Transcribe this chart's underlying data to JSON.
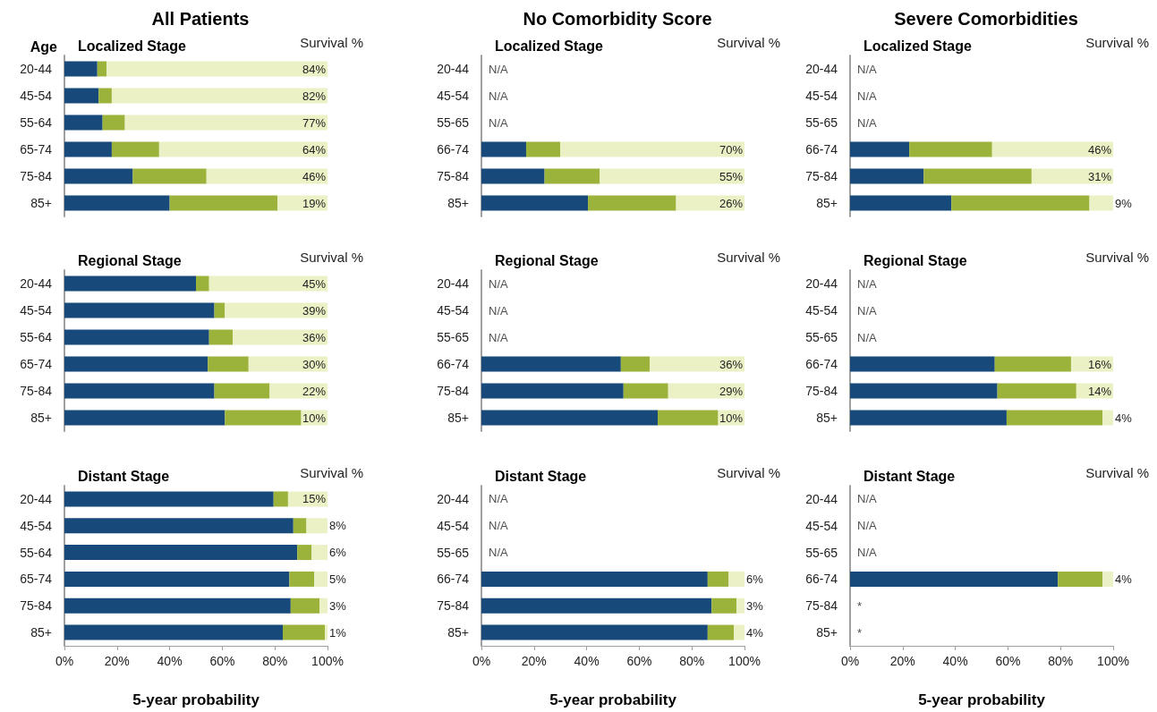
{
  "chart_data": [
    {
      "type": "bar",
      "orientation": "horizontal",
      "stacked": true,
      "title": "All Patients",
      "subtitle": "Localized Stage",
      "ylabel": "Age",
      "categories": [
        "20-44",
        "45-54",
        "55-64",
        "65-74",
        "75-84",
        "85+"
      ],
      "xlim": [
        0,
        100
      ],
      "tick_labels": "y",
      "annotations": [
        "Survival %"
      ],
      "series": [
        {
          "color": "#17497a",
          "values": [
            12.5,
            13,
            14.5,
            18,
            26,
            40
          ]
        },
        {
          "color": "#9bb33b",
          "values": [
            3.5,
            5,
            8.5,
            18,
            28,
            41
          ]
        },
        {
          "color": "#ebf1c5",
          "values": [
            84,
            82,
            77,
            64,
            46,
            19
          ],
          "value_labels": [
            "84%",
            "82%",
            "77%",
            "64%",
            "46%",
            "19%"
          ]
        }
      ]
    },
    {
      "type": "bar",
      "orientation": "horizontal",
      "stacked": true,
      "title": "No Comorbidity Score",
      "subtitle": "Localized Stage",
      "categories": [
        "20-44",
        "45-54",
        "55-65",
        "66-74",
        "75-84",
        "85+"
      ],
      "xlim": [
        0,
        100
      ],
      "tick_labels": "y",
      "annotations": [
        "Survival %"
      ],
      "series": [
        {
          "color": "#17497a",
          "values": [
            null,
            null,
            null,
            17,
            24,
            40.5
          ],
          "value_labels": [
            "N/A",
            "N/A",
            "N/A",
            null,
            null,
            null
          ]
        },
        {
          "color": "#9bb33b",
          "values": [
            null,
            null,
            null,
            13,
            21,
            33.5
          ]
        },
        {
          "color": "#ebf1c5",
          "values": [
            null,
            null,
            null,
            70,
            55,
            26
          ],
          "value_labels": [
            null,
            null,
            null,
            "70%",
            "55%",
            "26%"
          ]
        }
      ]
    },
    {
      "type": "bar",
      "orientation": "horizontal",
      "stacked": true,
      "title": "Severe Comorbidities",
      "subtitle": "Localized Stage",
      "categories": [
        "20-44",
        "45-54",
        "55-65",
        "66-74",
        "75-84",
        "85+"
      ],
      "xlim": [
        0,
        100
      ],
      "tick_labels": "y",
      "annotations": [
        "Survival %"
      ],
      "series": [
        {
          "color": "#17497a",
          "values": [
            null,
            null,
            null,
            22.5,
            28,
            38.5
          ],
          "value_labels": [
            "N/A",
            "N/A",
            "N/A",
            null,
            null,
            null
          ]
        },
        {
          "color": "#9bb33b",
          "values": [
            null,
            null,
            null,
            31.5,
            41,
            52.5
          ]
        },
        {
          "color": "#ebf1c5",
          "values": [
            null,
            null,
            null,
            46,
            31,
            9
          ],
          "value_labels": [
            null,
            null,
            null,
            "46%",
            "31%",
            "9%"
          ]
        }
      ]
    },
    {
      "type": "bar",
      "orientation": "horizontal",
      "stacked": true,
      "subtitle": "Regional Stage",
      "categories": [
        "20-44",
        "45-54",
        "55-64",
        "65-74",
        "75-84",
        "85+"
      ],
      "xlim": [
        0,
        100
      ],
      "tick_labels": "y",
      "annotations": [
        "Survival %"
      ],
      "series": [
        {
          "color": "#17497a",
          "values": [
            50,
            57,
            55,
            54.5,
            57,
            61
          ]
        },
        {
          "color": "#9bb33b",
          "values": [
            5,
            4,
            9,
            15.5,
            21,
            29
          ]
        },
        {
          "color": "#ebf1c5",
          "values": [
            45,
            39,
            36,
            30,
            22,
            10
          ],
          "value_labels": [
            "45%",
            "39%",
            "36%",
            "30%",
            "22%",
            "10%"
          ]
        }
      ]
    },
    {
      "type": "bar",
      "orientation": "horizontal",
      "stacked": true,
      "subtitle": "Regional Stage",
      "categories": [
        "20-44",
        "45-54",
        "55-65",
        "66-74",
        "75-84",
        "85+"
      ],
      "xlim": [
        0,
        100
      ],
      "tick_labels": "y",
      "annotations": [
        "Survival %"
      ],
      "series": [
        {
          "color": "#17497a",
          "values": [
            null,
            null,
            null,
            53,
            54,
            67
          ],
          "value_labels": [
            "N/A",
            "N/A",
            "N/A",
            null,
            null,
            null
          ]
        },
        {
          "color": "#9bb33b",
          "values": [
            null,
            null,
            null,
            11,
            17,
            23
          ]
        },
        {
          "color": "#ebf1c5",
          "values": [
            null,
            null,
            null,
            36,
            29,
            10
          ],
          "value_labels": [
            null,
            null,
            null,
            "36%",
            "29%",
            "10%"
          ]
        }
      ]
    },
    {
      "type": "bar",
      "orientation": "horizontal",
      "stacked": true,
      "subtitle": "Regional Stage",
      "categories": [
        "20-44",
        "45-54",
        "55-65",
        "66-74",
        "75-84",
        "85+"
      ],
      "xlim": [
        0,
        100
      ],
      "tick_labels": "y",
      "annotations": [
        "Survival %"
      ],
      "series": [
        {
          "color": "#17497a",
          "values": [
            null,
            null,
            null,
            55,
            56,
            59.5
          ],
          "value_labels": [
            "N/A",
            "N/A",
            "N/A",
            null,
            null,
            null
          ]
        },
        {
          "color": "#9bb33b",
          "values": [
            null,
            null,
            null,
            29,
            30,
            36.5
          ]
        },
        {
          "color": "#ebf1c5",
          "values": [
            null,
            null,
            null,
            16,
            14,
            4
          ],
          "value_labels": [
            null,
            null,
            null,
            "16%",
            "14%",
            "4%"
          ]
        }
      ]
    },
    {
      "type": "bar",
      "orientation": "horizontal",
      "stacked": true,
      "subtitle": "Distant Stage",
      "xlabel": "5-year probability",
      "categories": [
        "20-44",
        "45-54",
        "55-64",
        "65-74",
        "75-84",
        "85+"
      ],
      "xlim": [
        0,
        100
      ],
      "xticks": [
        {
          "value": 0,
          "label": "0%"
        },
        {
          "value": 20,
          "label": "20%"
        },
        {
          "value": 40,
          "label": "40%"
        },
        {
          "value": 60,
          "label": "60%"
        },
        {
          "value": 80,
          "label": "80%"
        },
        {
          "value": 100,
          "label": "100%"
        }
      ],
      "annotations": [
        "Survival %"
      ],
      "series": [
        {
          "color": "#17497a",
          "values": [
            79.5,
            87,
            88.5,
            85.5,
            86,
            83
          ]
        },
        {
          "color": "#9bb33b",
          "values": [
            5.5,
            5,
            5.5,
            9.5,
            11,
            16
          ]
        },
        {
          "color": "#ebf1c5",
          "values": [
            15,
            8,
            6,
            5,
            3,
            1
          ],
          "value_labels": [
            "15%",
            "8%",
            "6%",
            "5%",
            "3%",
            "1%"
          ]
        }
      ]
    },
    {
      "type": "bar",
      "orientation": "horizontal",
      "stacked": true,
      "subtitle": "Distant Stage",
      "xlabel": "5-year probability",
      "categories": [
        "20-44",
        "45-54",
        "55-65",
        "66-74",
        "75-84",
        "85+"
      ],
      "xlim": [
        0,
        100
      ],
      "xticks": [
        {
          "value": 0,
          "label": "0%"
        },
        {
          "value": 20,
          "label": "20%"
        },
        {
          "value": 40,
          "label": "40%"
        },
        {
          "value": 60,
          "label": "60%"
        },
        {
          "value": 80,
          "label": "80%"
        },
        {
          "value": 100,
          "label": "100%"
        }
      ],
      "annotations": [
        "Survival %"
      ],
      "series": [
        {
          "color": "#17497a",
          "values": [
            null,
            null,
            null,
            86,
            87.5,
            86
          ],
          "value_labels": [
            "N/A",
            "N/A",
            "N/A",
            null,
            null,
            null
          ]
        },
        {
          "color": "#9bb33b",
          "values": [
            null,
            null,
            null,
            8,
            9.5,
            10
          ]
        },
        {
          "color": "#ebf1c5",
          "values": [
            null,
            null,
            null,
            6,
            3,
            4
          ],
          "value_labels": [
            null,
            null,
            null,
            "6%",
            "3%",
            "4%"
          ]
        }
      ]
    },
    {
      "type": "bar",
      "orientation": "horizontal",
      "stacked": true,
      "subtitle": "Distant Stage",
      "xlabel": "5-year probability",
      "categories": [
        "20-44",
        "45-54",
        "55-65",
        "66-74",
        "75-84",
        "85+"
      ],
      "xlim": [
        0,
        100
      ],
      "xticks": [
        {
          "value": 0,
          "label": "0%"
        },
        {
          "value": 20,
          "label": "20%"
        },
        {
          "value": 40,
          "label": "40%"
        },
        {
          "value": 60,
          "label": "60%"
        },
        {
          "value": 80,
          "label": "80%"
        },
        {
          "value": 100,
          "label": "100%"
        }
      ],
      "annotations": [
        "Survival %"
      ],
      "series": [
        {
          "color": "#17497a",
          "values": [
            null,
            null,
            null,
            79,
            null,
            null
          ],
          "value_labels": [
            "N/A",
            "N/A",
            "N/A",
            null,
            "*",
            "*"
          ]
        },
        {
          "color": "#9bb33b",
          "values": [
            null,
            null,
            null,
            17,
            null,
            null
          ]
        },
        {
          "color": "#ebf1c5",
          "values": [
            null,
            null,
            null,
            4,
            null,
            null
          ],
          "value_labels": [
            null,
            null,
            null,
            "4%",
            null,
            null
          ]
        }
      ]
    }
  ]
}
